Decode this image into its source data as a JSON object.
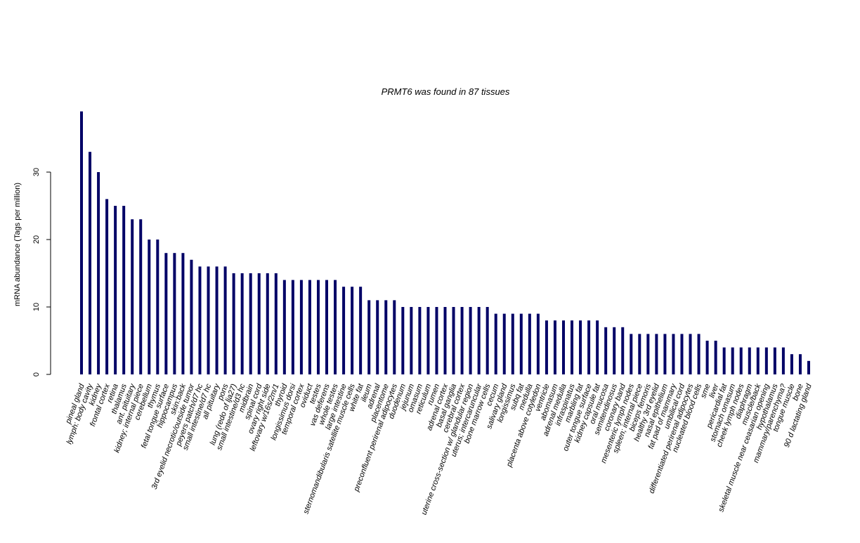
{
  "chart_data": {
    "type": "bar",
    "title": "PRMT6  was found in  87  tissues",
    "xlabel": "",
    "ylabel": "mRNA abundance (Tags per million)",
    "ylim": [
      0,
      39
    ],
    "yticks": [
      0,
      10,
      20,
      30
    ],
    "bar_color": "#000066",
    "grid": false,
    "legend": "none",
    "categories": [
      "pineal gland",
      "lymph: body cavity",
      "kidney",
      "frontal cortex",
      "retina",
      "thalamus",
      "ant. pituitary",
      "kidney; internal piece",
      "cerebellum",
      "thymus",
      "fetal tongue surface",
      "hippocampus",
      "skin:back",
      "3rd eyelid necrotic/outside tumor",
      "peyers patch/d7 hc",
      "small intestine/d7 hc",
      "all pituitary",
      "pons",
      "lung (redo of lja27)",
      "small intestine/d3 hc",
      "midbrain",
      "spinal cord",
      "ovary right side",
      "leftovary w/16s/2m/1",
      "thyroid",
      "longissimus dorsi",
      "temporal cortex",
      "oviduct",
      "testes",
      "vas deferens",
      "whole testes",
      "large intestine",
      "sternomandibularis satellite muscle cells",
      "white fat",
      "ileum",
      "adrenal",
      "placentome",
      "preconfluent perirenal adipocytes",
      "duodenum",
      "jejunum",
      "omasum",
      "reticulum",
      "rumen",
      "adrenal cortex",
      "basal ganglia",
      "cerebral cortex",
      "uterine cross-section w/ glandular region",
      "uterus; intercaruncular",
      "bone marrow cells",
      "cecum",
      "salivary gland",
      "longissimus",
      "subq fat",
      "medulla",
      "placenta above cotyledon",
      "ventricle",
      "abomasum",
      "adrenal medulla",
      "infraspinatus",
      "marbling fat",
      "outer tongue surface",
      "kidney capsule fat",
      "oral mucosa",
      "semitendinosus",
      "coronary band",
      "mesenteric lymph nodes",
      "spleen; internal piece",
      "biceps femoris",
      "healthy 3rd eyelid",
      "nasal epithelium",
      "fat pad of mammary",
      "umbilical cord",
      "differentiated perirenal adipocytes",
      "nucleated blood cells",
      "sme",
      "liver",
      "pericardial fat",
      "stomach omasum",
      "cheek lymph nodes",
      "diaphragm",
      "muscle/back",
      "skeletal muscle near ceasarian opening",
      "hypothalamus",
      "mammary/parenchyma?",
      "tongue muscle",
      "bone",
      "90 d lactating gland"
    ],
    "values": [
      39,
      33,
      30,
      26,
      25,
      25,
      23,
      23,
      20,
      20,
      18,
      18,
      18,
      17,
      16,
      16,
      16,
      16,
      15,
      15,
      15,
      15,
      15,
      15,
      14,
      14,
      14,
      14,
      14,
      14,
      14,
      13,
      13,
      13,
      11,
      11,
      11,
      11,
      10,
      10,
      10,
      10,
      10,
      10,
      10,
      10,
      10,
      10,
      10,
      9,
      9,
      9,
      9,
      9,
      9,
      8,
      8,
      8,
      8,
      8,
      8,
      8,
      7,
      7,
      7,
      6,
      6,
      6,
      6,
      6,
      6,
      6,
      6,
      6,
      5,
      5,
      4,
      4,
      4,
      4,
      4,
      4,
      4,
      4,
      3,
      3,
      2
    ]
  }
}
